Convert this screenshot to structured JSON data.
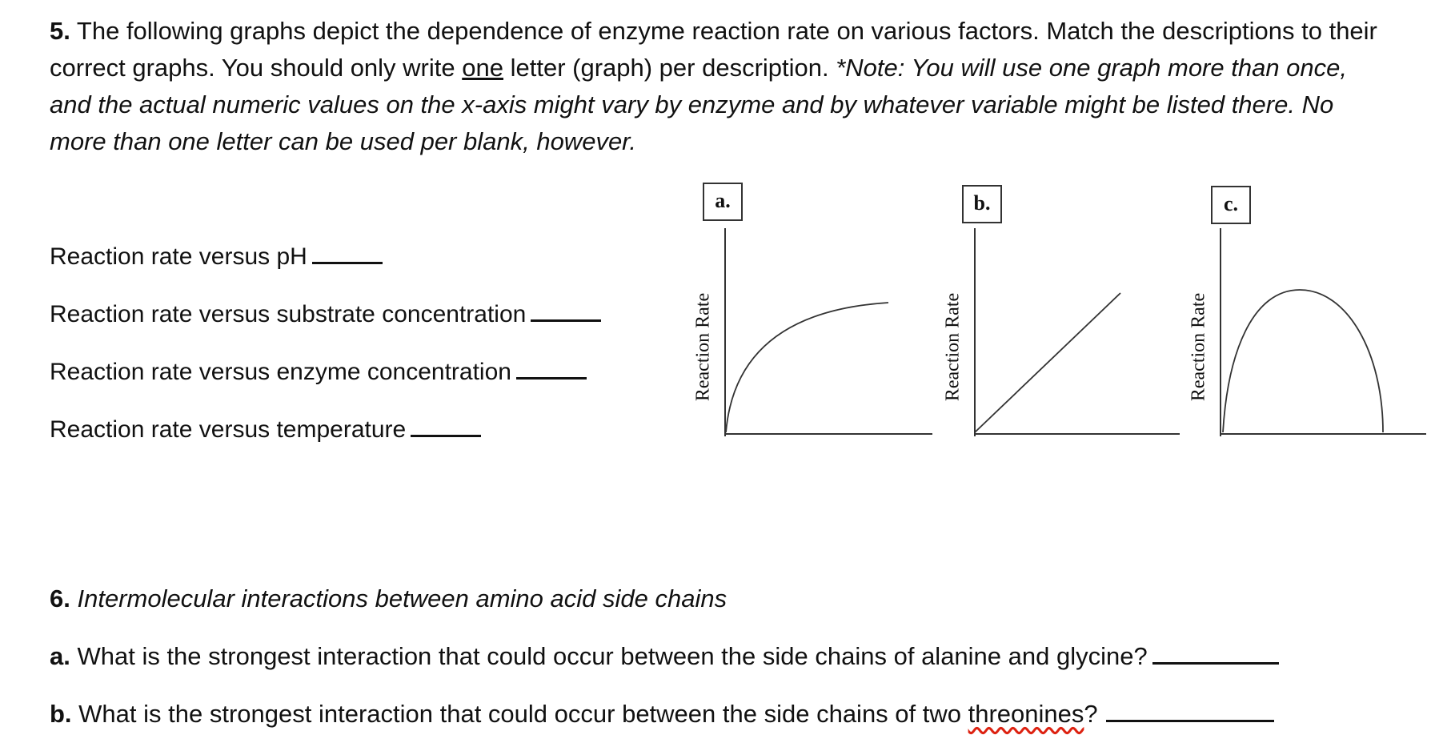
{
  "q5": {
    "number": "5.",
    "text_plain": " The following graphs depict the dependence of enzyme reaction rate on various factors.  Match the descriptions to their correct graphs. You should only write ",
    "text_underlined": "one",
    "text_after": " letter (graph) per description.  ",
    "note": "*Note: You will use one graph more than once, and the actual numeric values on the x-axis might vary by enzyme and by whatever variable might be listed there. No more than one letter can be used per blank, however."
  },
  "descriptions": [
    "Reaction rate versus pH",
    "Reaction rate versus substrate concentration",
    "Reaction rate versus enzyme concentration",
    "Reaction rate versus temperature"
  ],
  "graphs": {
    "labels": [
      "a.",
      "b.",
      "c."
    ],
    "ylabel": "Reaction Rate"
  },
  "q6": {
    "number": "6.",
    "title": " Intermolecular interactions between amino acid side chains",
    "a_label": "a.",
    "a_text": " What is the strongest interaction that could occur between the side chains of alanine and glycine?",
    "b_label": "b.",
    "b_text_before": " What is the strongest interaction that could occur between the side chains of two ",
    "b_text_misspelled": "threonines",
    "b_text_after": "?"
  }
}
